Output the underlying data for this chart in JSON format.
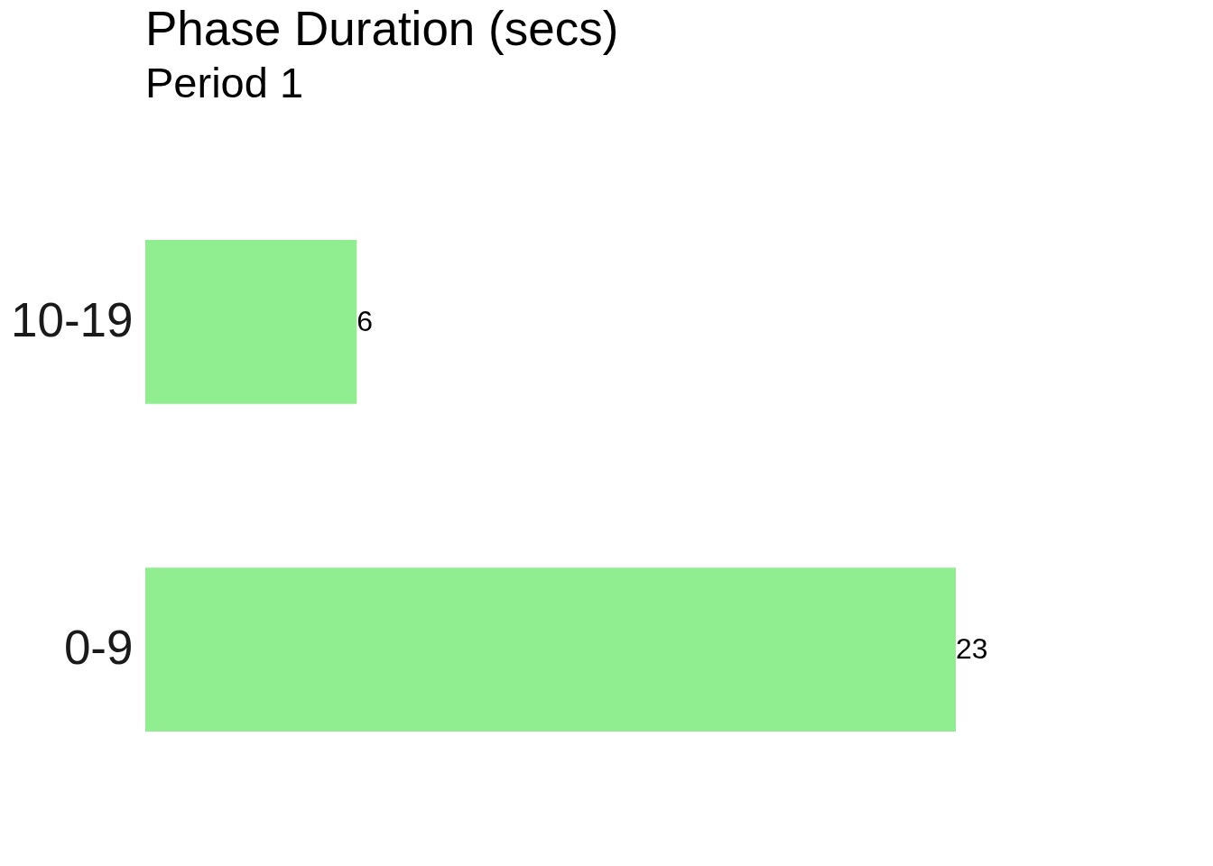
{
  "chart_data": {
    "type": "bar",
    "title": "Phase Duration (secs)",
    "subtitle": "Period 1",
    "orientation": "horizontal",
    "categories": [
      "10-19",
      "0-9"
    ],
    "values": [
      6,
      23
    ],
    "color": "#90ee90",
    "data_labels": true
  }
}
